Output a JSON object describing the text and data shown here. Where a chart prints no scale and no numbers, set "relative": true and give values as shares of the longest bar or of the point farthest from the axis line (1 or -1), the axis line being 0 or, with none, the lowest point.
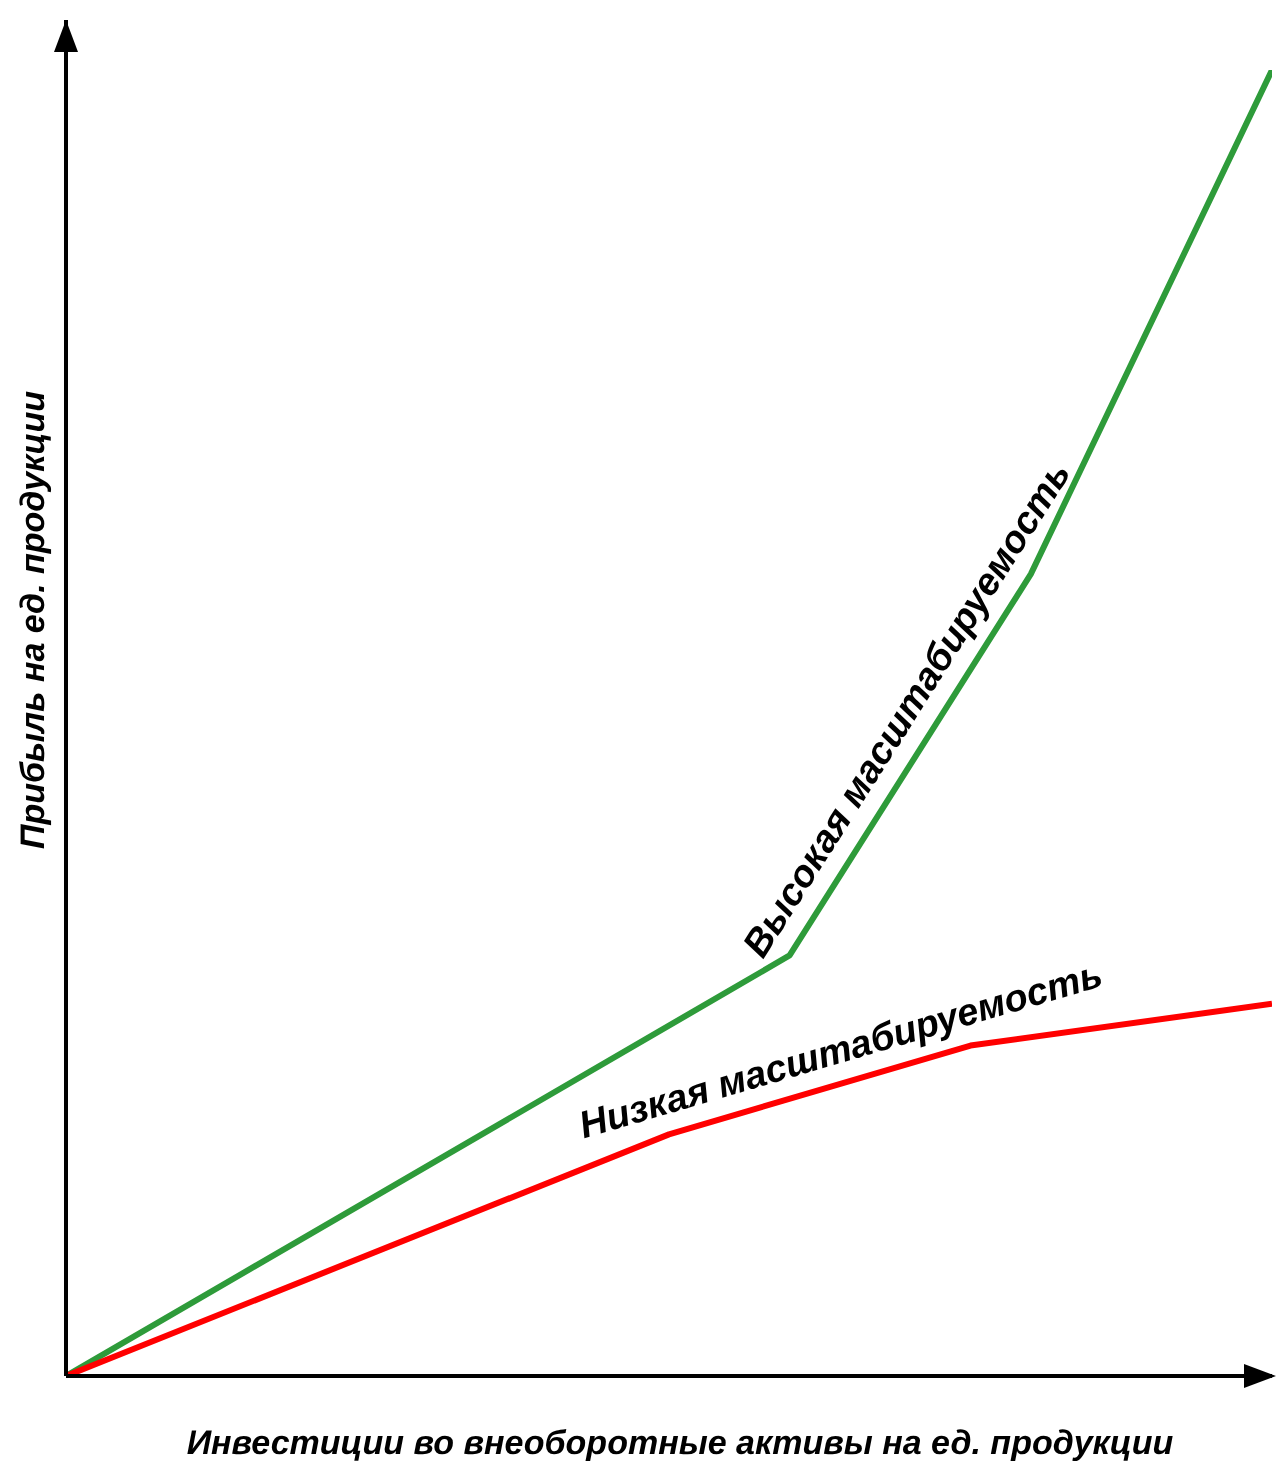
{
  "chart_data": {
    "type": "line",
    "relative": true,
    "xlabel": "Инвестиции во внеоборотные активы на ед. продукции",
    "ylabel": "Прибыль на ед. продукции",
    "marker": "none",
    "categories": [
      null,
      null,
      null,
      null,
      null,
      null,
      null,
      null,
      null,
      null,
      null,
      null,
      null,
      null,
      null,
      null,
      null,
      null,
      null,
      null,
      null
    ],
    "series": [
      {
        "name": "Высокая масштабируемость",
        "color": "#2e9b3a",
        "values": [
          0,
          null,
          null,
          null,
          null,
          null,
          null,
          null,
          null,
          null,
          null,
          null,
          0.322,
          null,
          null,
          null,
          0.614,
          null,
          null,
          null,
          1
        ]
      },
      {
        "name": "Низкая масштабируемость",
        "color": "#ff0000",
        "values": [
          0,
          null,
          null,
          null,
          null,
          null,
          null,
          null,
          null,
          null,
          0.185,
          null,
          null,
          null,
          null,
          0.253,
          null,
          null,
          null,
          null,
          0.285
        ]
      }
    ]
  }
}
